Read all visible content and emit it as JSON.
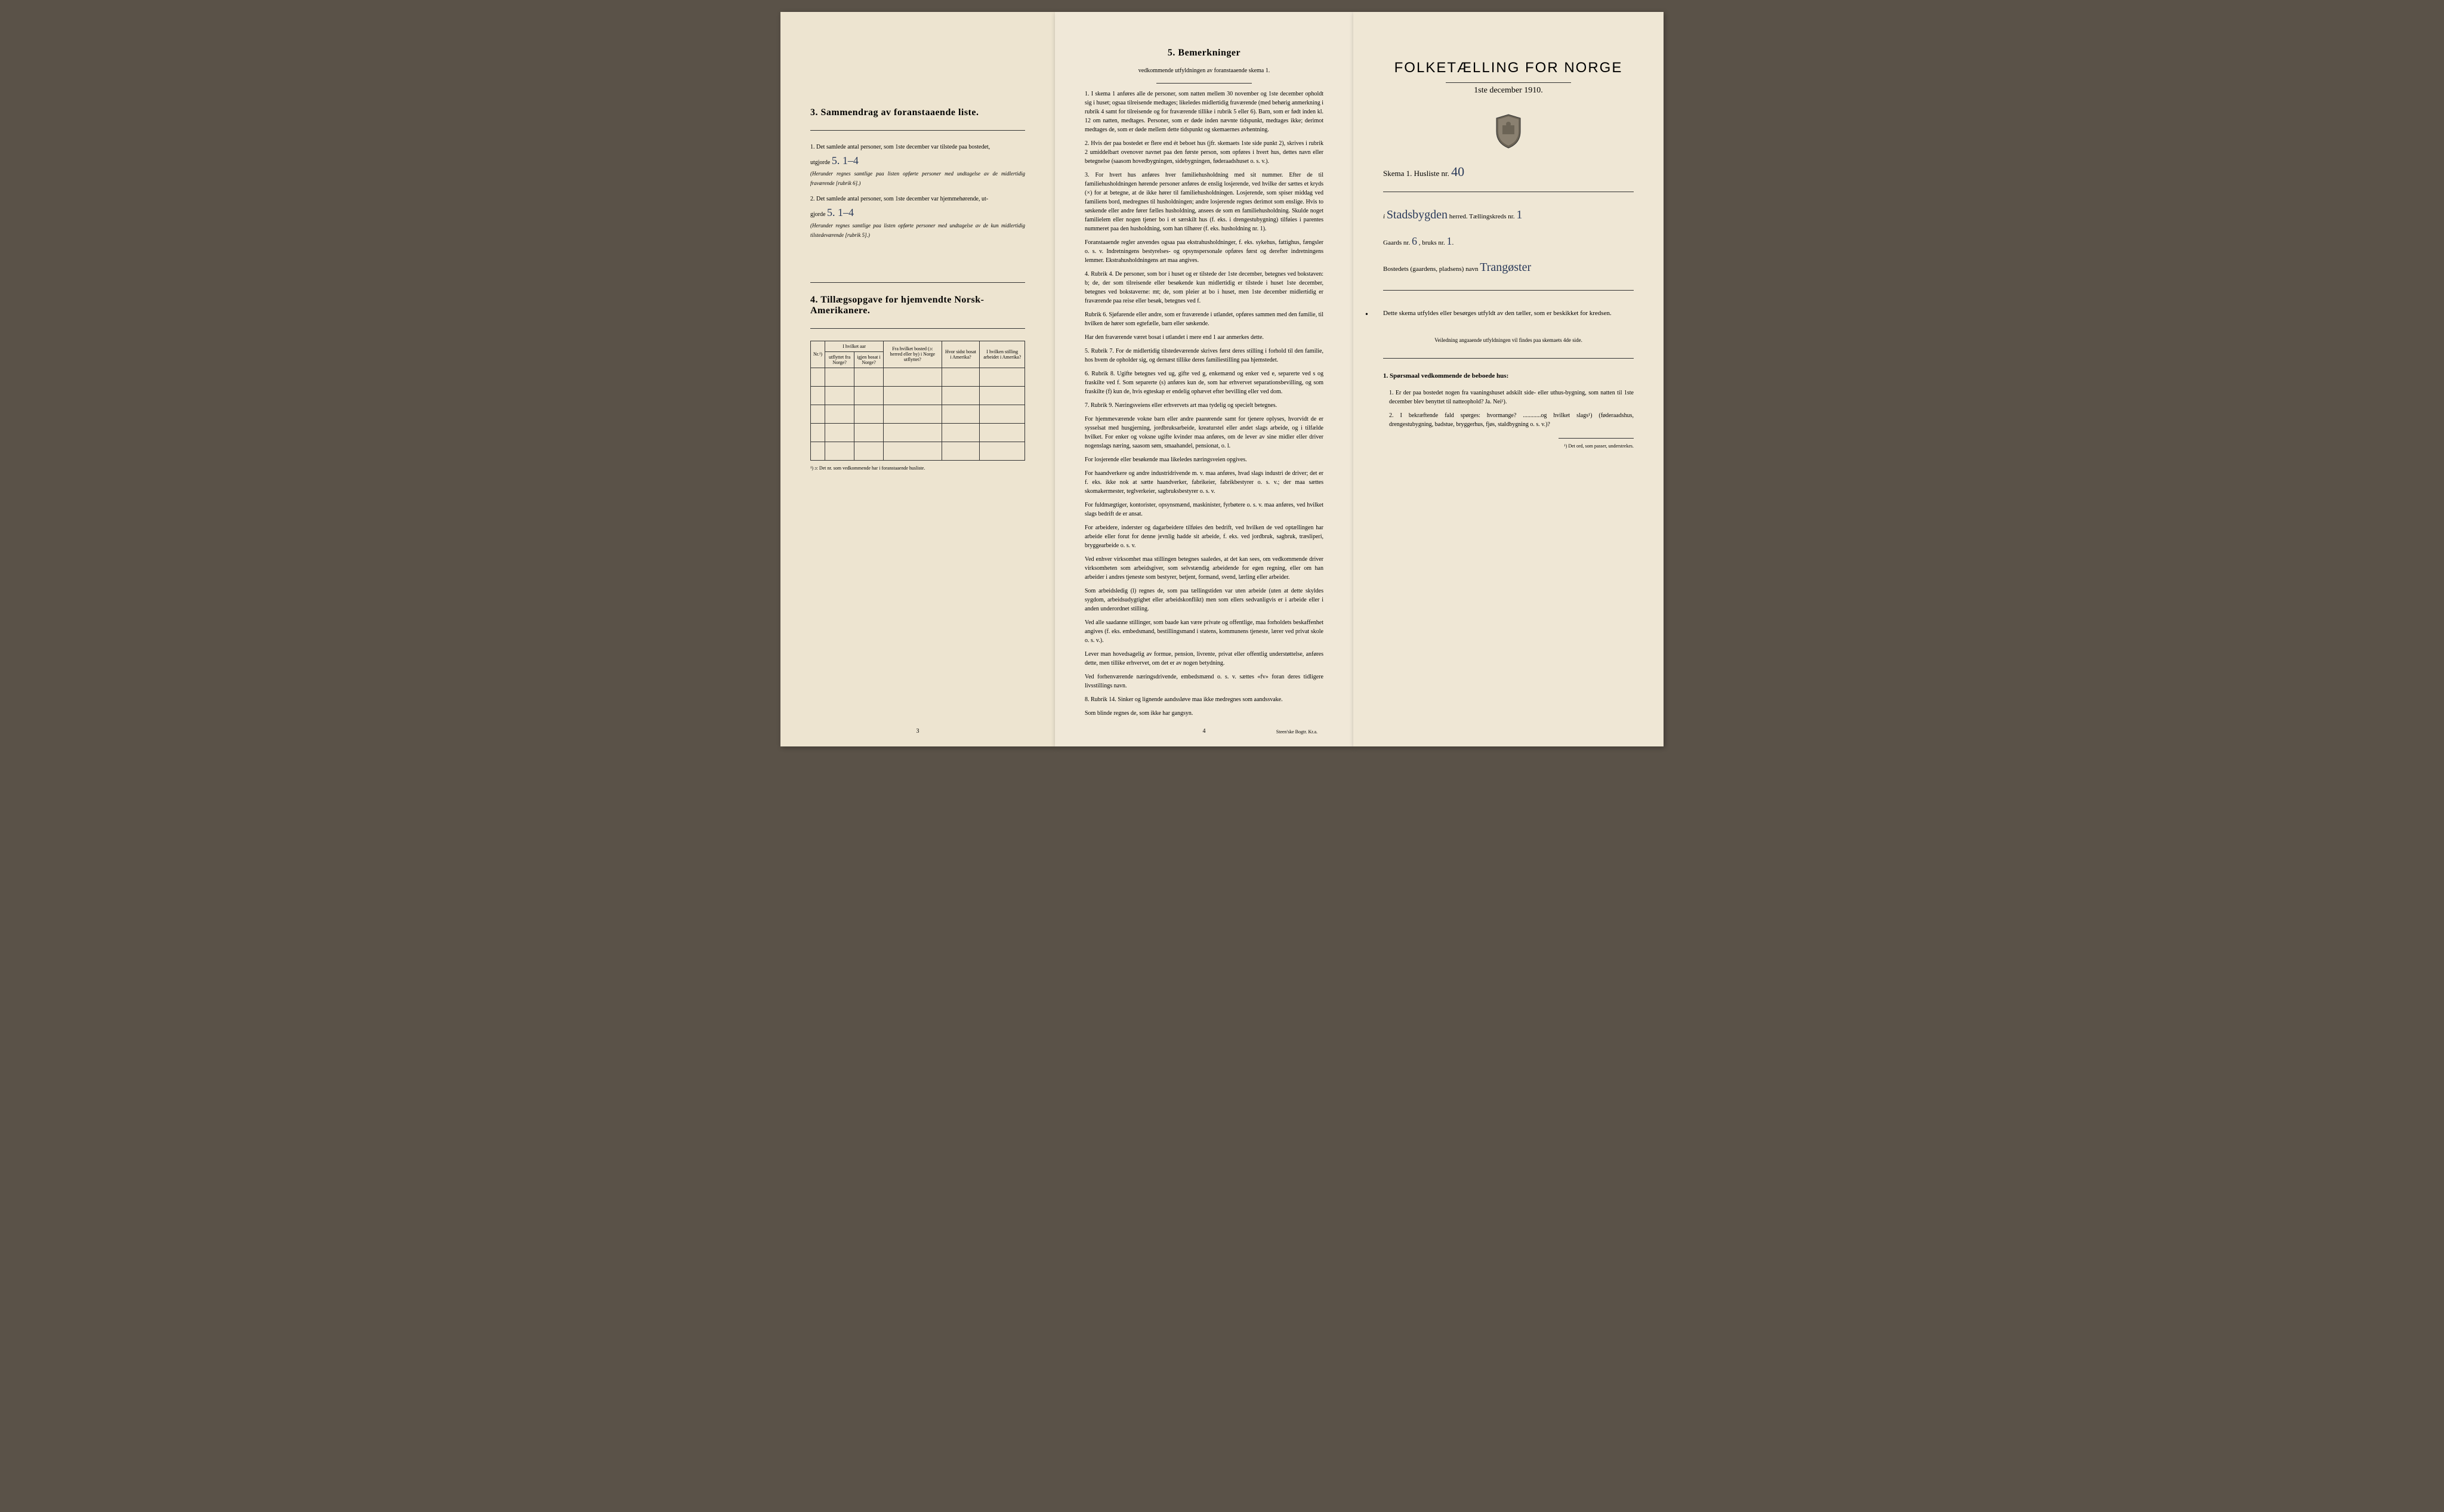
{
  "page1": {
    "section3_title": "3.   Sammendrag av foranstaaende liste.",
    "item1_text": "1.  Det samlede antal personer, som 1ste december var tilstede paa bostedet,",
    "item1_line2": "utgjorde",
    "item1_handwritten": "5.  1–4",
    "item1_note": "(Herunder regnes samtlige paa listen opførte personer med undtagelse av de midlertidig fraværende [rubrik 6].)",
    "item2_text": "2.  Det samlede antal personer, som 1ste december var hjemmehørende, ut-",
    "item2_line2": "gjorde",
    "item2_handwritten": "5.  1–4",
    "item2_note": "(Herunder regnes samtlige paa listen opførte personer med undtagelse av de kun midlertidig tilstedeværende [rubrik 5].)",
    "section4_title": "4.  Tillægsopgave for hjemvendte Norsk-Amerikanere.",
    "table_headers": {
      "nr": "Nr.¹)",
      "col1_top": "I hvilket aar",
      "col1a": "utflyttet fra Norge?",
      "col1b": "igjen bosat i Norge?",
      "col2": "Fra hvilket bosted (ɔ: herred eller by) i Norge utflyttet?",
      "col3": "Hvor sidst bosat i Amerika?",
      "col4": "I hvilken stilling arbeidet i Amerika?"
    },
    "footnote": "¹) ɔ: Det nr. som vedkommende har i foranstaaende husliste.",
    "page_num": "3"
  },
  "page2": {
    "section5_title": "5.   Bemerkninger",
    "section5_subtitle": "vedkommende utfyldningen av foranstaaende skema 1.",
    "items": [
      "1.  I skema 1 anføres alle de personer, som natten mellem 30 november og 1ste december opholdt sig i huset; ogsaa tilreisende medtages; likeledes midlertidig fraværende (med behørig anmerkning i rubrik 4 samt for tilreisende og for fraværende tillike i rubrik 5 eller 6). Barn, som er født inden kl. 12 om natten, medtages. Personer, som er døde inden nævnte tidspunkt, medtages ikke; derimot medtages de, som er døde mellem dette tidspunkt og skemaernes avhentning.",
      "2.  Hvis der paa bostedet er flere end ét beboet hus (jfr. skemaets 1ste side punkt 2), skrives i rubrik 2 umiddelbart ovenover navnet paa den første person, som opføres i hvert hus, dettes navn eller betegnelse (saasom hovedbygningen, sidebygningen, føderaadshuset o. s. v.).",
      "3.  For hvert hus anføres hver familiehusholdning med sit nummer. Efter de til familiehusholdningen hørende personer anføres de enslig losjerende, ved hvilke der sættes et kryds (×) for at betegne, at de ikke hører til familiehusholdningen. Losjerende, som spiser middag ved familiens bord, medregnes til husholdningen; andre losjerende regnes derimot som enslige. Hvis to søskende eller andre fører fælles husholdning, ansees de som en familiehusholdning. Skulde noget familielem eller nogen tjener bo i et særskilt hus (f. eks. i drengestubygning) tilføies i parentes nummeret paa den husholdning, som han tilhører (f. eks. husholdning nr. 1).",
      "Foranstaaende regler anvendes ogsaa paa ekstrahusholdninger, f. eks. sykehus, fattighus, fængsler o. s. v. Indretningens bestyrelses- og opsynspersonale opføres først og derefter indretningens lemmer. Ekstrahusholdningens art maa angives.",
      "4.  Rubrik 4. De personer, som bor i huset og er tilstede der 1ste december, betegnes ved bokstaven: b; de, der som tilreisende eller besøkende kun midlertidig er tilstede i huset 1ste december, betegnes ved bokstaverne: mt; de, som pleier at bo i huset, men 1ste december midlertidig er fraværende paa reise eller besøk, betegnes ved f.",
      "Rubrik 6. Sjøfarende eller andre, som er fraværende i utlandet, opføres sammen med den familie, til hvilken de hører som egtefælle, barn eller søskende.",
      "Har den fraværende været bosat i utlandet i mere end 1 aar anmerkes dette.",
      "5.  Rubrik 7. For de midlertidig tilstedeværende skrives først deres stilling i forhold til den familie, hos hvem de opholder sig, og dernæst tillike deres familiestilling paa hjemstedet.",
      "6.  Rubrik 8. Ugifte betegnes ved ug, gifte ved g, enkemænd og enker ved e, separerte ved s og fraskilte ved f. Som separerte (s) anføres kun de, som har erhvervet separationsbevilling, og som fraskilte (f) kun de, hvis egteskap er endelig ophævet efter bevilling eller ved dom.",
      "7.  Rubrik 9. Næringsveiens eller erhvervets art maa tydelig og specielt betegnes.",
      "For hjemmeværende vokne barn eller andre paarørende samt for tjenere oplyses, hvorvidt de er sysselsat med husgjerning, jordbruksarbeide, kreaturstel eller andet slags arbeide, og i tilfælde hvilket. For enker og voksne ugifte kvinder maa anføres, om de lever av sine midler eller driver nogenslags næring, saasom søm, smaahandel, pensionat, o. l.",
      "For losjerende eller besøkende maa likeledes næringsveien opgives.",
      "For haandverkere og andre industridrivende m. v. maa anføres, hvad slags industri de driver; det er f. eks. ikke nok at sætte haandverker, fabrikeier, fabrikbestyrer o. s. v.; der maa sættes skomakermester, teglverkeier, sagbruksbestyrer o. s. v.",
      "For fuldmægtiger, kontorister, opsynsmænd, maskinister, fyrbøtere o. s. v. maa anføres, ved hvilket slags bedrift de er ansat.",
      "For arbeidere, inderster og dagarbeidere tilføies den bedrift, ved hvilken de ved optællingen har arbeide eller forut for denne jevnlig hadde sit arbeide, f. eks. ved jordbruk, sagbruk, træsliperi, bryggearbeide o. s. v.",
      "Ved enhver virksomhet maa stillingen betegnes saaledes, at det kan sees, om vedkommende driver virksomheten som arbeidsgiver, som selvstændig arbeidende for egen regning, eller om han arbeider i andres tjeneste som bestyrer, betjent, formand, svend, lærling eller arbeider.",
      "Som arbeidsledig (l) regnes de, som paa tællingstiden var uten arbeide (uten at dette skyldes sygdom, arbeidsudygtighet eller arbeidskonflikt) men som ellers sedvanligvis er i arbeide eller i anden underordnet stilling.",
      "Ved alle saadanne stillinger, som baade kan være private og offentlige, maa forholdets beskaffenhet angives (f. eks. embedsmand, bestillingsmand i statens, kommunens tjeneste, lærer ved privat skole o. s. v.).",
      "Lever man hovedsagelig av formue, pension, livrente, privat eller offentlig understøttelse, anføres dette, men tillike erhvervet, om det er av nogen betydning.",
      "Ved forhenværende næringsdrivende, embedsmænd o. s. v. sættes «fv» foran deres tidligere livsstillings navn.",
      "8.  Rubrik 14. Sinker og lignende aandssløve maa ikke medregnes som aandssvake.",
      "Som blinde regnes de, som ikke har gangsyn."
    ],
    "page_num": "4",
    "printer": "Steen'ske Bogtr.  Kr.a."
  },
  "page3": {
    "title": "FOLKETÆLLING FOR NORGE",
    "date": "1ste december 1910.",
    "skema_label": "Skema 1.   Husliste nr.",
    "husliste_nr": "40",
    "herred_prefix": "i",
    "herred_name": "Stadsbygden",
    "herred_suffix": "herred.  Tællingskreds nr.",
    "kreds_nr": "1",
    "gaards_label": "Gaards nr.",
    "gaards_nr": "6",
    "bruks_label": ",  bruks nr.",
    "bruks_nr": "1",
    "bosted_label": "Bostedets (gaardens, pladsens) navn",
    "bosted_name": "Trangøster",
    "instruction": "Dette skema utfyldes eller besørges utfyldt av den tæller, som er beskikket for kredsen.",
    "instruction_sub": "Veiledning angaaende utfyldningen vil findes paa skemaets 4de side.",
    "q_heading": "1. Spørsmaal vedkommende de beboede hus:",
    "q1": "1.  Er der paa bostedet nogen fra vaaningshuset adskilt side- eller uthus-bygning, som natten til 1ste december blev benyttet til natteophold?   Ja.   Nei¹).",
    "q2": "2.  I bekræftende fald spørges: hvormange? ............og hvilket slags¹) (føderaadshus, drengestubygning, badstue, bryggerhus, fjøs, staldbygning o. s. v.)?",
    "footnote": "¹) Det ord, som passer, understrekes."
  }
}
